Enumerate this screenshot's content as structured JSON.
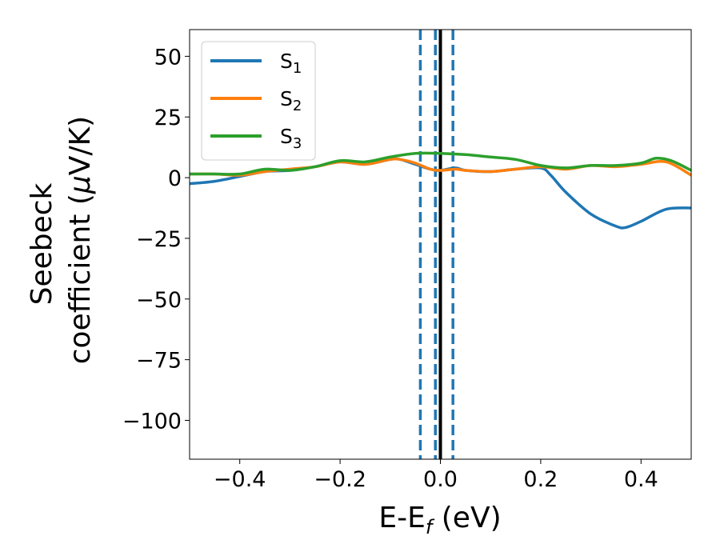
{
  "chart_data": {
    "type": "line",
    "xlabel": {
      "main": "E-E",
      "sub": "f",
      "suffix": " (eV)"
    },
    "ylabel": {
      "line1": "Seebeck",
      "line2_prefix": "coefficient  (",
      "line2_mu": "μ",
      "line2_suffix": "V/K)"
    },
    "xlim": [
      -0.5,
      0.5
    ],
    "ylim": [
      -116,
      61
    ],
    "xticks": [
      -0.4,
      -0.2,
      0.0,
      0.2,
      0.4
    ],
    "xtick_labels": [
      "−0.4",
      "−0.2",
      "0.0",
      "0.2",
      "0.4"
    ],
    "yticks": [
      50,
      25,
      0,
      -25,
      -50,
      -75,
      -100
    ],
    "ytick_labels": [
      "50",
      "25",
      "0",
      "−25",
      "−50",
      "−75",
      "−100"
    ],
    "grid": false,
    "legend_position": "top-left",
    "vlines": [
      {
        "x": 0.0,
        "style": "solid",
        "color": "#000000"
      },
      {
        "x": -0.04,
        "style": "dashed",
        "color": "#1f77b4"
      },
      {
        "x": -0.01,
        "style": "dashed",
        "color": "#1f77b4"
      },
      {
        "x": 0.025,
        "style": "dashed",
        "color": "#1f77b4"
      }
    ],
    "series": [
      {
        "name": "S",
        "subscript": "1",
        "color": "#1f77b4",
        "x": [
          -0.5,
          -0.45,
          -0.4,
          -0.35,
          -0.3,
          -0.25,
          -0.2,
          -0.15,
          -0.1,
          -0.08,
          -0.05,
          -0.02,
          0.0,
          0.03,
          0.05,
          0.1,
          0.15,
          0.2,
          0.22,
          0.25,
          0.3,
          0.35,
          0.37,
          0.4,
          0.45,
          0.5
        ],
        "y": [
          -2.5,
          -1.5,
          0.5,
          2.5,
          3,
          4.5,
          6.5,
          5.5,
          7.5,
          7.5,
          5.5,
          3.5,
          3,
          4,
          3,
          2.5,
          3.5,
          4,
          1,
          -6,
          -15,
          -20,
          -20.5,
          -18,
          -13,
          -12.5
        ]
      },
      {
        "name": "S",
        "subscript": "2",
        "color": "#ff7f0e",
        "x": [
          -0.5,
          -0.45,
          -0.4,
          -0.35,
          -0.3,
          -0.25,
          -0.2,
          -0.15,
          -0.1,
          -0.08,
          -0.05,
          -0.02,
          0.0,
          0.03,
          0.05,
          0.1,
          0.15,
          0.2,
          0.25,
          0.3,
          0.35,
          0.4,
          0.45,
          0.5
        ],
        "y": [
          1.5,
          1.5,
          1,
          2.5,
          3.5,
          4.5,
          6.5,
          5.5,
          7.5,
          7.5,
          6,
          3.5,
          3,
          3.5,
          3,
          2.5,
          3.5,
          4.5,
          3.5,
          5,
          4.5,
          5.5,
          6.5,
          1
        ]
      },
      {
        "name": "S",
        "subscript": "3",
        "color": "#2ca02c",
        "x": [
          -0.5,
          -0.45,
          -0.4,
          -0.35,
          -0.3,
          -0.25,
          -0.2,
          -0.15,
          -0.1,
          -0.05,
          0.0,
          0.05,
          0.1,
          0.15,
          0.2,
          0.25,
          0.3,
          0.35,
          0.4,
          0.43,
          0.46,
          0.5
        ],
        "y": [
          1.5,
          1.5,
          1.5,
          3.5,
          3,
          4.5,
          7,
          6.5,
          8.5,
          10,
          10,
          9.5,
          8.5,
          7.5,
          5,
          4,
          5,
          5,
          6,
          8,
          7,
          3
        ]
      }
    ]
  }
}
